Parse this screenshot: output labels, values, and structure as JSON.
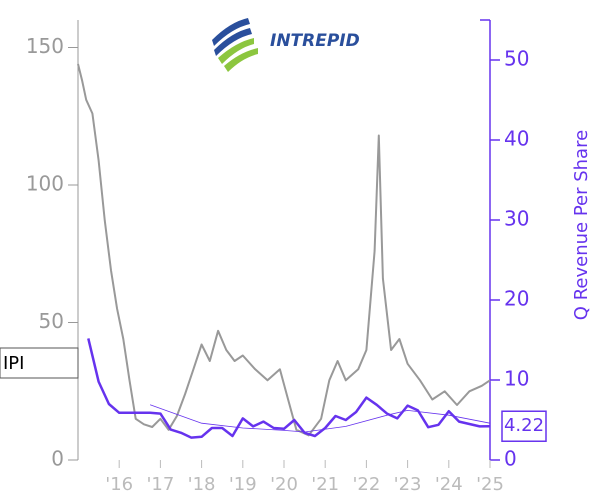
{
  "chart_data": {
    "type": "line",
    "logo_text": "INTREPID",
    "ticker": "IPI",
    "y2_label": "Q Revenue Per Share",
    "xlim": [
      2015,
      2025
    ],
    "xticks": [
      {
        "value": 2016,
        "label": "'16"
      },
      {
        "value": 2017,
        "label": "'17"
      },
      {
        "value": 2018,
        "label": "'18"
      },
      {
        "value": 2019,
        "label": "'19"
      },
      {
        "value": 2020,
        "label": "'20"
      },
      {
        "value": 2021,
        "label": "'21"
      },
      {
        "value": 2022,
        "label": "'22"
      },
      {
        "value": 2023,
        "label": "'23"
      },
      {
        "value": 2024,
        "label": "'24"
      },
      {
        "value": 2025,
        "label": "'25"
      }
    ],
    "ylim": [
      0,
      160
    ],
    "yticks": [
      0,
      50,
      100,
      150
    ],
    "y2lim": [
      0,
      55
    ],
    "y2ticks": [
      0,
      10,
      20,
      30,
      40,
      50
    ],
    "series": [
      {
        "color": "#999999",
        "axis": "y",
        "width": 2,
        "x": [
          2015.0,
          2015.1,
          2015.2,
          2015.35,
          2015.5,
          2015.65,
          2015.8,
          2015.95,
          2016.1,
          2016.25,
          2016.4,
          2016.6,
          2016.8,
          2017.0,
          2017.2,
          2017.4,
          2017.6,
          2017.8,
          2018.0,
          2018.2,
          2018.4,
          2018.6,
          2018.8,
          2019.0,
          2019.3,
          2019.6,
          2019.9,
          2020.1,
          2020.3,
          2020.6,
          2020.9,
          2021.1,
          2021.3,
          2021.5,
          2021.8,
          2022.0,
          2022.2,
          2022.3,
          2022.4,
          2022.6,
          2022.8,
          2023.0,
          2023.3,
          2023.6,
          2023.9,
          2024.2,
          2024.5,
          2024.8,
          2025.0
        ],
        "values": [
          144,
          138,
          131,
          126,
          109,
          87,
          69,
          55,
          44,
          29,
          15,
          13,
          12,
          15,
          11,
          16,
          24,
          33,
          42,
          36,
          47,
          40,
          36,
          38,
          33,
          29,
          33,
          22,
          11,
          9,
          15,
          29,
          36,
          29,
          33,
          40,
          76,
          118,
          66,
          40,
          44,
          35,
          29,
          22,
          25,
          20,
          25,
          27,
          29
        ]
      },
      {
        "color": "#6633ee",
        "axis": "y2",
        "width": 2.5,
        "x": [
          2015.25,
          2015.5,
          2015.75,
          2016.0,
          2016.25,
          2016.5,
          2016.75,
          2017.0,
          2017.25,
          2017.5,
          2017.75,
          2018.0,
          2018.25,
          2018.5,
          2018.75,
          2019.0,
          2019.25,
          2019.5,
          2019.75,
          2020.0,
          2020.25,
          2020.5,
          2020.75,
          2021.0,
          2021.25,
          2021.5,
          2021.75,
          2022.0,
          2022.25,
          2022.5,
          2022.75,
          2023.0,
          2023.25,
          2023.5,
          2023.75,
          2024.0,
          2024.25,
          2024.5,
          2024.75,
          2025.0
        ],
        "values": [
          15.2,
          9.8,
          7,
          5.9,
          5.9,
          5.9,
          5.9,
          5.8,
          3.8,
          3.4,
          2.8,
          2.9,
          4,
          4,
          3,
          5.2,
          4.2,
          4.8,
          4,
          3.9,
          5,
          3.4,
          3,
          4,
          5.5,
          5,
          6,
          7.8,
          6.9,
          5.8,
          5.2,
          6.8,
          6.2,
          4.1,
          4.4,
          6.1,
          4.8,
          4.5,
          4.2,
          4.22
        ]
      },
      {
        "color": "#6633ee",
        "axis": "y2",
        "width": 0.8,
        "x": [
          2016.75,
          2018.0,
          2019.0,
          2020.0,
          2020.5,
          2021.5,
          2022.5,
          2023.0,
          2024.0,
          2025.0
        ],
        "values": [
          6.9,
          4.6,
          4.0,
          3.7,
          3.5,
          4.2,
          5.6,
          6.2,
          5.6,
          4.6
        ]
      }
    ]
  }
}
